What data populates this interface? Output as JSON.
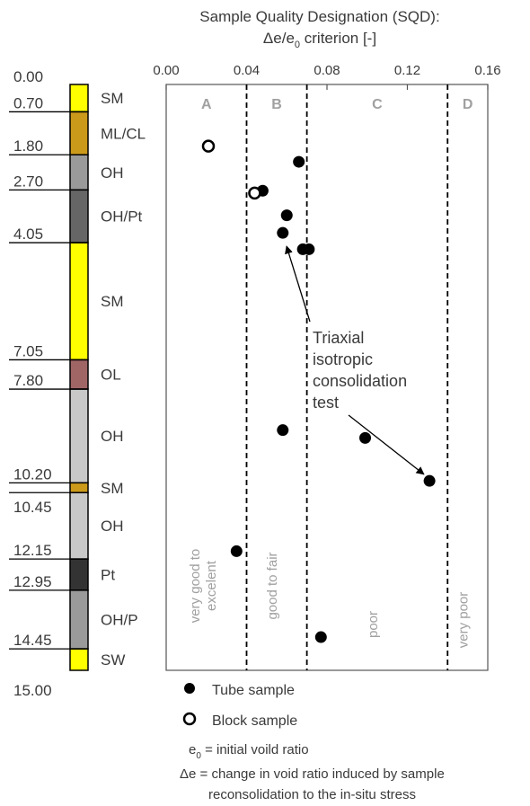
{
  "chart_data": {
    "type": "scatter",
    "title_line1": "Sample Quality Designation (SQD):",
    "title_line2": "Δe/e",
    "title_line2_sub": "0",
    "title_line2_end": " criterion [-]",
    "xlim": [
      0,
      0.16
    ],
    "x_ticks": [
      "0.00",
      "0.04",
      "0.08",
      "0.12",
      "0.16"
    ],
    "x_tick_values": [
      0,
      0.04,
      0.08,
      0.12,
      0.16
    ],
    "depth_range": [
      0,
      15.0
    ],
    "thresholds": [
      0.04,
      0.07,
      0.14
    ],
    "zones": [
      {
        "letter": "A",
        "label": "very good to excelent",
        "x0": 0,
        "x1": 0.04
      },
      {
        "letter": "B",
        "label": "good to fair",
        "x0": 0.04,
        "x1": 0.07
      },
      {
        "letter": "C",
        "label": "poor",
        "x0": 0.07,
        "x1": 0.14
      },
      {
        "letter": "D",
        "label": "very poor",
        "x0": 0.14,
        "x1": 0.16
      }
    ],
    "series": [
      {
        "name": "Tube sample",
        "marker": "filled",
        "points": [
          {
            "x": 0.066,
            "depth": 1.98
          },
          {
            "x": 0.048,
            "depth": 2.72
          },
          {
            "x": 0.06,
            "depth": 3.35
          },
          {
            "x": 0.058,
            "depth": 3.8
          },
          {
            "x": 0.068,
            "depth": 4.22
          },
          {
            "x": 0.071,
            "depth": 4.22
          },
          {
            "x": 0.058,
            "depth": 8.85
          },
          {
            "x": 0.099,
            "depth": 9.05
          },
          {
            "x": 0.131,
            "depth": 10.15
          },
          {
            "x": 0.035,
            "depth": 11.95
          },
          {
            "x": 0.077,
            "depth": 14.15
          }
        ]
      },
      {
        "name": "Block sample",
        "marker": "open",
        "points": [
          {
            "x": 0.021,
            "depth": 1.58
          },
          {
            "x": 0.044,
            "depth": 2.78
          }
        ]
      }
    ],
    "annotation": {
      "lines": [
        "Triaxial",
        "isotropic",
        "consolidation",
        "test"
      ],
      "targets": [
        {
          "x": 0.059,
          "depth": 4.05
        },
        {
          "x": 0.13,
          "depth": 10.05
        }
      ]
    },
    "layers": [
      {
        "top": 0.0,
        "bottom": 0.7,
        "soil": "SM",
        "color": "#ffff00"
      },
      {
        "top": 0.7,
        "bottom": 1.8,
        "soil": "ML/CL",
        "color": "#cc9a1a"
      },
      {
        "top": 1.8,
        "bottom": 2.7,
        "soil": "OH",
        "color": "#9a9a9a"
      },
      {
        "top": 2.7,
        "bottom": 4.05,
        "soil": "OH/Pt",
        "color": "#666666"
      },
      {
        "top": 4.05,
        "bottom": 7.05,
        "soil": "SM",
        "color": "#ffff00"
      },
      {
        "top": 7.05,
        "bottom": 7.8,
        "soil": "OL",
        "color": "#a06666"
      },
      {
        "top": 7.8,
        "bottom": 10.2,
        "soil": "OH",
        "color": "#c8c8c8"
      },
      {
        "top": 10.2,
        "bottom": 10.45,
        "soil": "SM",
        "color": "#cc9a1a"
      },
      {
        "top": 10.45,
        "bottom": 12.15,
        "soil": "OH",
        "color": "#c8c8c8"
      },
      {
        "top": 12.15,
        "bottom": 12.95,
        "soil": "Pt",
        "color": "#333333"
      },
      {
        "top": 12.95,
        "bottom": 14.45,
        "soil": "OH/P",
        "color": "#9a9a9a"
      },
      {
        "top": 14.45,
        "bottom": 15.0,
        "soil": "SW",
        "color": "#ffff00"
      }
    ],
    "depth_labels": [
      "0.00",
      "0.70",
      "1.80",
      "2.70",
      "4.05",
      "7.05",
      "7.80",
      "10.20",
      "10.45",
      "12.15",
      "12.95",
      "14.45",
      "15.00"
    ],
    "depth_label_values": [
      0.0,
      0.7,
      1.8,
      2.7,
      4.05,
      7.05,
      7.8,
      10.2,
      10.45,
      12.15,
      12.95,
      14.45,
      15.0
    ],
    "legend": {
      "tube": "Tube sample",
      "block": "Block sample",
      "e0_prefix": "e",
      "e0_sub": "0",
      "e0_def": " = initial voild ratio",
      "de_def_line1": "Δe = change in void ratio induced by sample",
      "de_def_line2": "reconsolidation to the in-situ stress"
    }
  }
}
